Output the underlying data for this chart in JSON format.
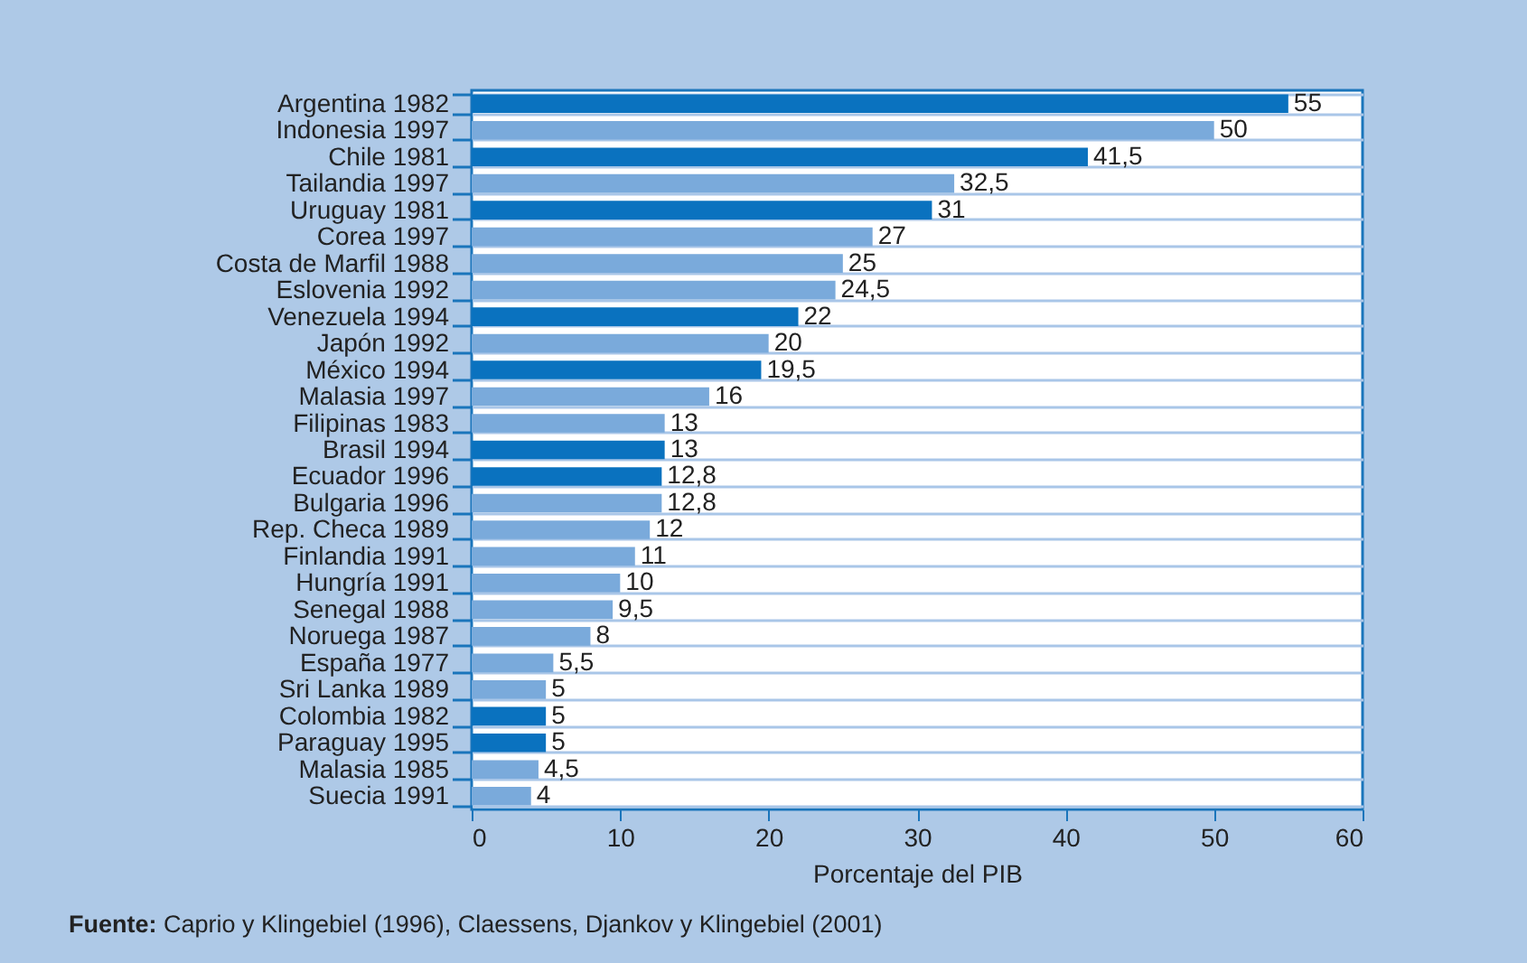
{
  "chart_data": {
    "type": "bar",
    "orientation": "horizontal",
    "xlabel": "Porcentaje del PIB",
    "categories": [
      "Argentina 1982",
      "Indonesia 1997",
      "Chile 1981",
      "Tailandia 1997",
      "Uruguay 1981",
      "Corea 1997",
      "Costa de Marfil 1988",
      "Eslovenia 1992",
      "Venezuela 1994",
      "Japón 1992",
      "México 1994",
      "Malasia 1997",
      "Filipinas 1983",
      "Brasil 1994",
      "Ecuador 1996",
      "Bulgaria 1996",
      "Rep. Checa 1989",
      "Finlandia 1991",
      "Hungría 1991",
      "Senegal 1988",
      "Noruega 1987",
      "España 1977",
      "Sri Lanka 1989",
      "Colombia 1982",
      "Paraguay 1995",
      "Malasia 1985",
      "Suecia 1991"
    ],
    "values": [
      55,
      50,
      41.5,
      32.5,
      31,
      27,
      25,
      24.5,
      22,
      20,
      19.5,
      16,
      13,
      13,
      12.8,
      12.8,
      12,
      11,
      10,
      9.5,
      8,
      5.5,
      5,
      5,
      5,
      4.5,
      4
    ],
    "value_labels": [
      "55",
      "50",
      "41,5",
      "32,5",
      "31",
      "27",
      "25",
      "24,5",
      "22",
      "20",
      "19,5",
      "16",
      "13",
      "13",
      "12,8",
      "12,8",
      "12",
      "11",
      "10",
      "9,5",
      "8",
      "5,5",
      "5",
      "5",
      "5",
      "4,5",
      "4"
    ],
    "colors": [
      "#0a72bf",
      "#7aaadb",
      "#0a72bf",
      "#7aaadb",
      "#0a72bf",
      "#7aaadb",
      "#7aaadb",
      "#7aaadb",
      "#0a72bf",
      "#7aaadb",
      "#0a72bf",
      "#7aaadb",
      "#7aaadb",
      "#0a72bf",
      "#0a72bf",
      "#7aaadb",
      "#7aaadb",
      "#7aaadb",
      "#7aaadb",
      "#7aaadb",
      "#7aaadb",
      "#7aaadb",
      "#7aaadb",
      "#0a72bf",
      "#0a72bf",
      "#7aaadb",
      "#7aaadb"
    ],
    "xlim": [
      0,
      60
    ],
    "xticks": [
      0,
      10,
      20,
      30,
      40,
      50,
      60
    ],
    "grid": "y",
    "annotations": [
      "Fuente: Caprio y Klingebiel (1996), Claessens, Djankov y Klingebiel (2001)"
    ]
  }
}
